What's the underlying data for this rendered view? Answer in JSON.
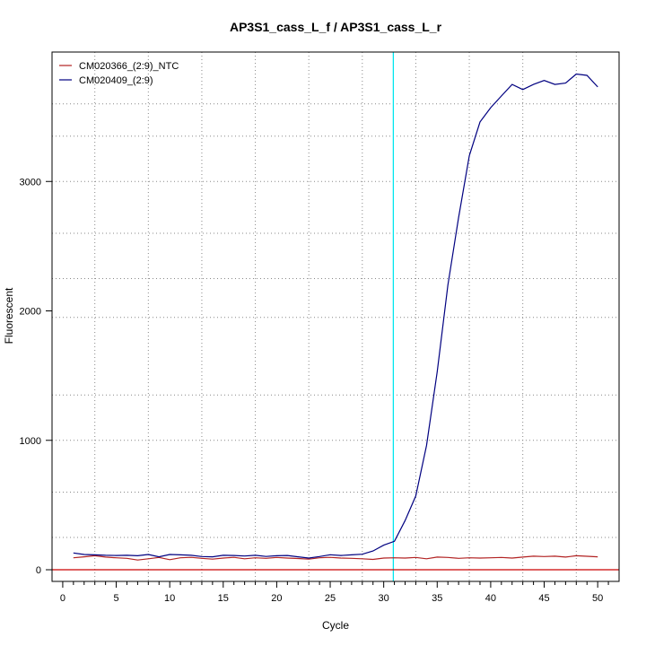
{
  "chart_data": {
    "type": "line",
    "title": "AP3S1_cass_L_f / AP3S1_cass_L_r",
    "xlabel": "Cycle",
    "ylabel": "Fluorescent",
    "xlim": [
      -1,
      52
    ],
    "ylim": [
      -90,
      4000
    ],
    "x_ticks": [
      0,
      5,
      10,
      15,
      20,
      25,
      30,
      35,
      40,
      45,
      50
    ],
    "y_ticks": [
      0,
      1000,
      2000,
      3000
    ],
    "x_minor_ticks": [
      1,
      2,
      3,
      4,
      6,
      7,
      8,
      9,
      11,
      12,
      13,
      14,
      16,
      17,
      18,
      19,
      21,
      22,
      23,
      24,
      26,
      27,
      28,
      29,
      31,
      32,
      33,
      34,
      36,
      37,
      38,
      39,
      41,
      42,
      43,
      44,
      46,
      47,
      48,
      49,
      51
    ],
    "x_grid": [
      3,
      8,
      13,
      18,
      23,
      28,
      33,
      38,
      43,
      48
    ],
    "y_grid": [
      250,
      600,
      1000,
      1350,
      1950,
      2250,
      2600,
      3000,
      3350,
      3600
    ],
    "grid": true,
    "legend_position": "top-left",
    "threshold_cycle": 30.9,
    "threshold_color": "#00e5ee",
    "baseline_value": 0,
    "baseline_color": "#cc0000",
    "x": [
      1,
      2,
      3,
      4,
      5,
      6,
      7,
      8,
      9,
      10,
      11,
      12,
      13,
      14,
      15,
      16,
      17,
      18,
      19,
      20,
      21,
      22,
      23,
      24,
      25,
      26,
      27,
      28,
      29,
      30,
      31,
      32,
      33,
      34,
      35,
      36,
      37,
      38,
      39,
      40,
      41,
      42,
      43,
      44,
      45,
      46,
      47,
      48,
      49,
      50
    ],
    "series": [
      {
        "name": "CM020366_(2:9)_NTC",
        "color": "#b22222",
        "values": [
          92,
          100,
          108,
          98,
          92,
          88,
          75,
          85,
          95,
          78,
          92,
          96,
          88,
          82,
          90,
          96,
          85,
          92,
          88,
          95,
          90,
          87,
          82,
          92,
          96,
          90,
          88,
          85,
          80,
          90,
          92,
          90,
          95,
          85,
          98,
          95,
          88,
          92,
          90,
          92,
          95,
          90,
          98,
          105,
          102,
          105,
          98,
          108,
          104,
          100
        ]
      },
      {
        "name": "CM020409_(2:9)",
        "color": "#000080",
        "values": [
          130,
          118,
          115,
          112,
          110,
          112,
          108,
          118,
          100,
          118,
          115,
          112,
          102,
          100,
          112,
          110,
          106,
          112,
          103,
          108,
          110,
          100,
          90,
          102,
          116,
          110,
          115,
          120,
          145,
          190,
          220,
          380,
          570,
          960,
          1530,
          2200,
          2720,
          3200,
          3460,
          3570,
          3660,
          3750,
          3710,
          3750,
          3780,
          3750,
          3760,
          3830,
          3820,
          3730
        ]
      }
    ]
  }
}
